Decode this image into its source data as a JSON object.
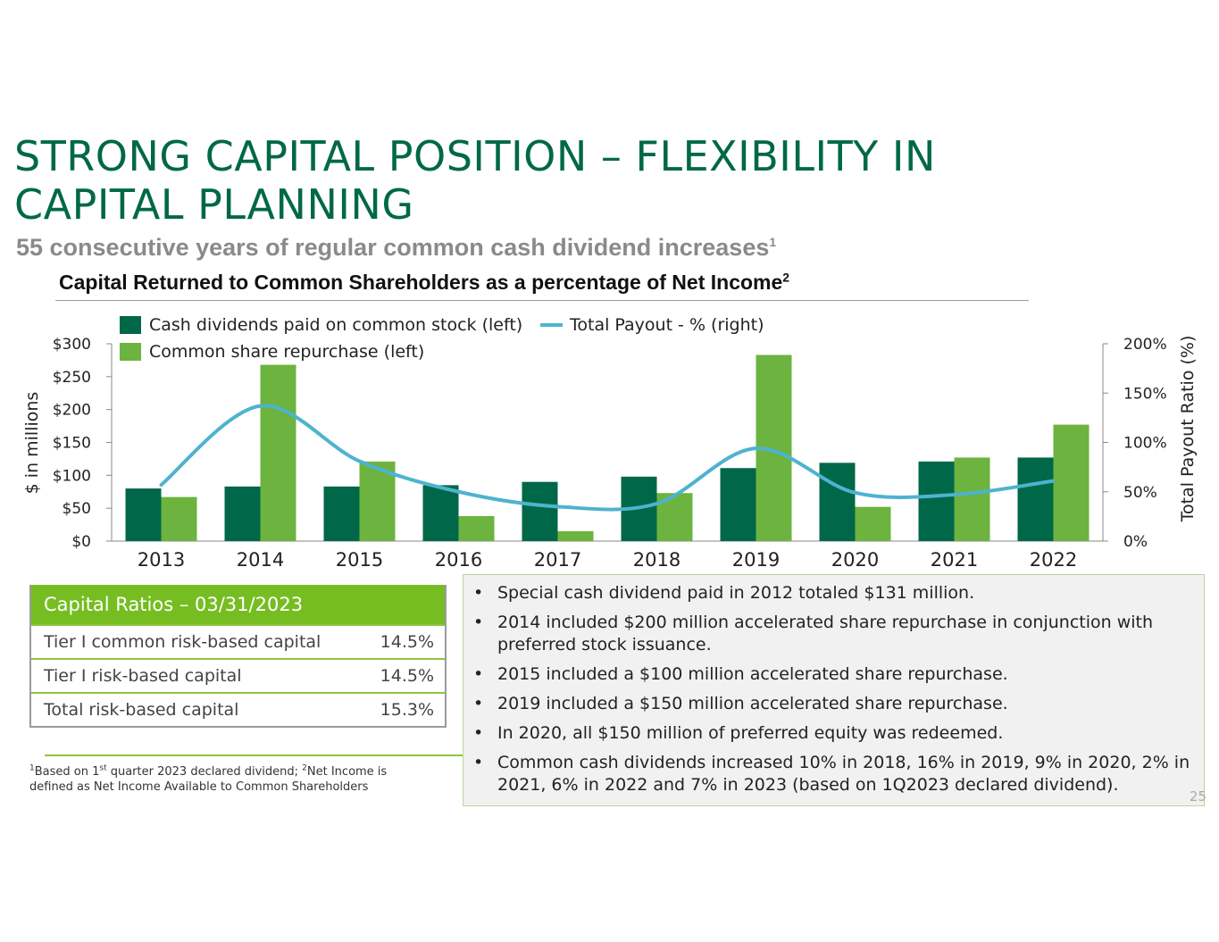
{
  "slide": {
    "title_line1": "STRONG CAPITAL POSITION – FLEXIBILITY IN",
    "title_line2": "CAPITAL PLANNING",
    "subtitle": "55 consecutive years of regular common cash dividend increases",
    "subtitle_sup": "1",
    "chart_heading": "Capital Returned to Common Shareholders as a percentage of Net Income",
    "chart_heading_sup": "2",
    "page_number": "25"
  },
  "chart_data": {
    "type": "bar",
    "categories": [
      "2013",
      "2014",
      "2015",
      "2016",
      "2017",
      "2018",
      "2019",
      "2020",
      "2021",
      "2022"
    ],
    "series": [
      {
        "name": "Cash dividends paid on common stock (left)",
        "axis": "left",
        "color": "#006848",
        "values": [
          80,
          83,
          83,
          85,
          90,
          98,
          111,
          119,
          121,
          127
        ]
      },
      {
        "name": "Common share repurchase (left)",
        "axis": "left",
        "color": "#6db33f",
        "values": [
          67,
          268,
          121,
          38,
          15,
          73,
          283,
          52,
          127,
          177
        ]
      },
      {
        "name": "Total Payout - % (right)",
        "axis": "right",
        "type": "line",
        "color": "#4eb3cf",
        "values": [
          57,
          137,
          81,
          50,
          35,
          38,
          94,
          49,
          47,
          61
        ]
      }
    ],
    "ylabel": "$ in millions",
    "y2label": "Total Payout Ratio (%)",
    "ylim": [
      0,
      300
    ],
    "y2lim": [
      0,
      200
    ],
    "yticks": [
      "$0",
      "$50",
      "$100",
      "$150",
      "$200",
      "$250",
      "$300"
    ],
    "y2ticks": [
      "0%",
      "50%",
      "100%",
      "150%",
      "200%"
    ],
    "legend": "top-left"
  },
  "capital_ratios": {
    "header": "Capital Ratios – 03/31/2023",
    "rows": [
      {
        "label": "Tier I common risk-based capital",
        "value": "14.5%"
      },
      {
        "label": "Tier I risk-based capital",
        "value": "14.5%"
      },
      {
        "label": "Total risk-based capital",
        "value": "15.3%"
      }
    ]
  },
  "footnote": {
    "sup1": "1",
    "part1": "Based on 1",
    "sup_st": "st",
    "part2": " quarter 2023 declared dividend;  ",
    "sup2": "2",
    "part3": "Net Income is defined as Net Income Available to Common Shareholders"
  },
  "notes": {
    "bullet": "•",
    "items": [
      "Special cash dividend paid in 2012 totaled $131 million.",
      "2014 included $200 million accelerated share repurchase in conjunction with preferred stock issuance.",
      "2015 included a $100 million accelerated share repurchase.",
      "2019 included a $150 million accelerated share repurchase.",
      "In 2020, all $150 million of preferred equity was redeemed.",
      "Common cash dividends increased 10% in 2018, 16% in 2019, 9% in 2020, 2% in 2021, 6% in 2022 and 7% in 2023 (based on 1Q2023 declared dividend)."
    ]
  }
}
